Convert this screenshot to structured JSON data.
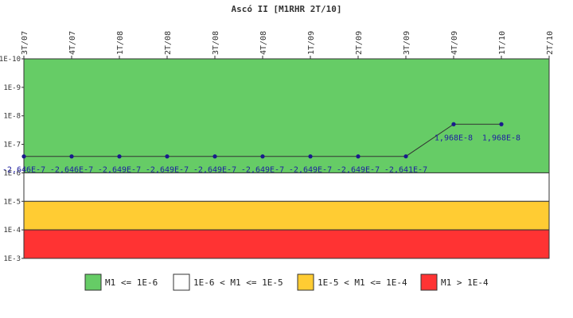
{
  "chart_data": {
    "type": "line",
    "title": "Ascó II [M1RHR 2T/10]",
    "y_scale": "log",
    "y_inverted": true,
    "ylim": [
      1e-10,
      0.001
    ],
    "y_tick_labels": [
      "1E-10",
      "1E-9",
      "1E-8",
      "1E-7",
      "1E-6",
      "1E-5",
      "1E-4",
      "1E-3"
    ],
    "categories": [
      "3T/07",
      "4T/07",
      "1T/08",
      "2T/08",
      "3T/08",
      "4T/08",
      "1T/09",
      "2T/09",
      "3T/09",
      "4T/09",
      "1T/10",
      "2T/10"
    ],
    "series": [
      {
        "values": [
          2.646e-07,
          2.646e-07,
          2.649e-07,
          2.649e-07,
          2.649e-07,
          2.649e-07,
          2.649e-07,
          2.649e-07,
          2.641e-07,
          1.968e-08,
          1.968e-08,
          null
        ],
        "labels": [
          "-2,646E-7",
          "-2,646E-7",
          "-2,649E-7",
          "-2,649E-7",
          "-2,649E-7",
          "-2,649E-7",
          "-2,649E-7",
          "-2,649E-7",
          "-2,641E-7",
          "1,968E-8",
          "1,968E-8",
          ""
        ],
        "color": "#1a1a8c"
      }
    ],
    "bands": [
      {
        "from": 1e-10,
        "to": 1e-06,
        "color": "#66cc66",
        "legend": "M1 <= 1E-6"
      },
      {
        "from": 1e-06,
        "to": 1e-05,
        "color": "#ffffff",
        "legend": "1E-6 < M1 <= 1E-5"
      },
      {
        "from": 1e-05,
        "to": 0.0001,
        "color": "#ffcc33",
        "legend": "1E-5 < M1 <= 1E-4"
      },
      {
        "from": 0.0001,
        "to": 0.001,
        "color": "#ff3333",
        "legend": "M1 > 1E-4"
      }
    ],
    "legend_position": "bottom"
  }
}
